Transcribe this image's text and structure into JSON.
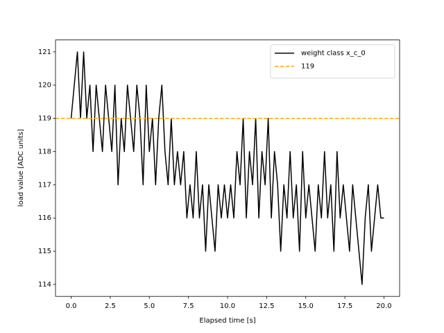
{
  "chart_data": {
    "type": "line",
    "x_label": "Elapsed time [s]",
    "y_label": "load value [ADC units]",
    "x": [
      0,
      0.2,
      0.4,
      0.6,
      0.8,
      1.0,
      1.2,
      1.4,
      1.6,
      1.8,
      2.0,
      2.2,
      2.4,
      2.6,
      2.8,
      3.0,
      3.2,
      3.4,
      3.6,
      3.8,
      4.0,
      4.2,
      4.4,
      4.6,
      4.8,
      5.0,
      5.2,
      5.4,
      5.6,
      5.8,
      6.0,
      6.2,
      6.4,
      6.6,
      6.8,
      7.0,
      7.2,
      7.4,
      7.6,
      7.8,
      8.0,
      8.2,
      8.4,
      8.6,
      8.8,
      9.0,
      9.2,
      9.4,
      9.6,
      9.8,
      10.0,
      10.2,
      10.4,
      10.6,
      10.8,
      11.0,
      11.2,
      11.4,
      11.6,
      11.8,
      12.0,
      12.2,
      12.4,
      12.6,
      12.8,
      13.0,
      13.2,
      13.4,
      13.6,
      13.8,
      14.0,
      14.2,
      14.4,
      14.6,
      14.8,
      15.0,
      15.2,
      15.4,
      15.6,
      15.8,
      16.0,
      16.2,
      16.4,
      16.6,
      16.8,
      17.0,
      17.2,
      17.4,
      17.6,
      17.8,
      18.0,
      18.2,
      18.4,
      18.6,
      18.8,
      19.0,
      19.2,
      19.4,
      19.6,
      19.8,
      20.0
    ],
    "series": [
      {
        "name": "weight class x_c_0",
        "color": "#000000",
        "values": [
          119,
          120,
          121,
          119,
          121,
          119,
          120,
          118,
          120,
          119,
          118,
          120,
          119,
          118,
          120,
          117,
          119,
          118,
          120,
          119,
          118,
          120,
          119,
          117,
          120,
          118,
          119,
          117,
          119,
          120,
          118,
          117,
          119,
          117,
          118,
          117,
          118,
          116,
          117,
          116,
          118,
          116,
          117,
          115,
          117,
          116,
          115,
          117,
          116,
          117,
          116,
          117,
          116,
          118,
          117,
          119,
          116,
          118,
          117,
          119,
          116,
          118,
          117,
          119,
          116,
          118,
          117,
          115,
          117,
          116,
          118,
          116,
          117,
          115,
          118,
          116,
          117,
          116,
          115,
          117,
          116,
          118,
          116,
          117,
          115,
          118,
          116,
          117,
          116,
          115,
          117,
          116,
          115,
          114,
          116,
          117,
          115,
          116,
          117,
          116,
          116
        ]
      }
    ],
    "reference_line": {
      "name": "119",
      "value": 119,
      "color": "#ffa500",
      "style": "dashed"
    },
    "xlim": [
      -1,
      21
    ],
    "ylim": [
      113.64,
      121.36
    ],
    "xticks": [
      {
        "value": 0,
        "label": "0.0"
      },
      2.5,
      {
        "value": 5,
        "label": "5.0"
      },
      7.5,
      {
        "value": 10,
        "label": "10.0"
      },
      12.5,
      {
        "value": 15,
        "label": "15.0"
      },
      17.5,
      {
        "value": 20,
        "label": "20.0"
      }
    ],
    "yticks": [
      114,
      115,
      116,
      117,
      118,
      119,
      120,
      121
    ],
    "legend": "upper right"
  }
}
